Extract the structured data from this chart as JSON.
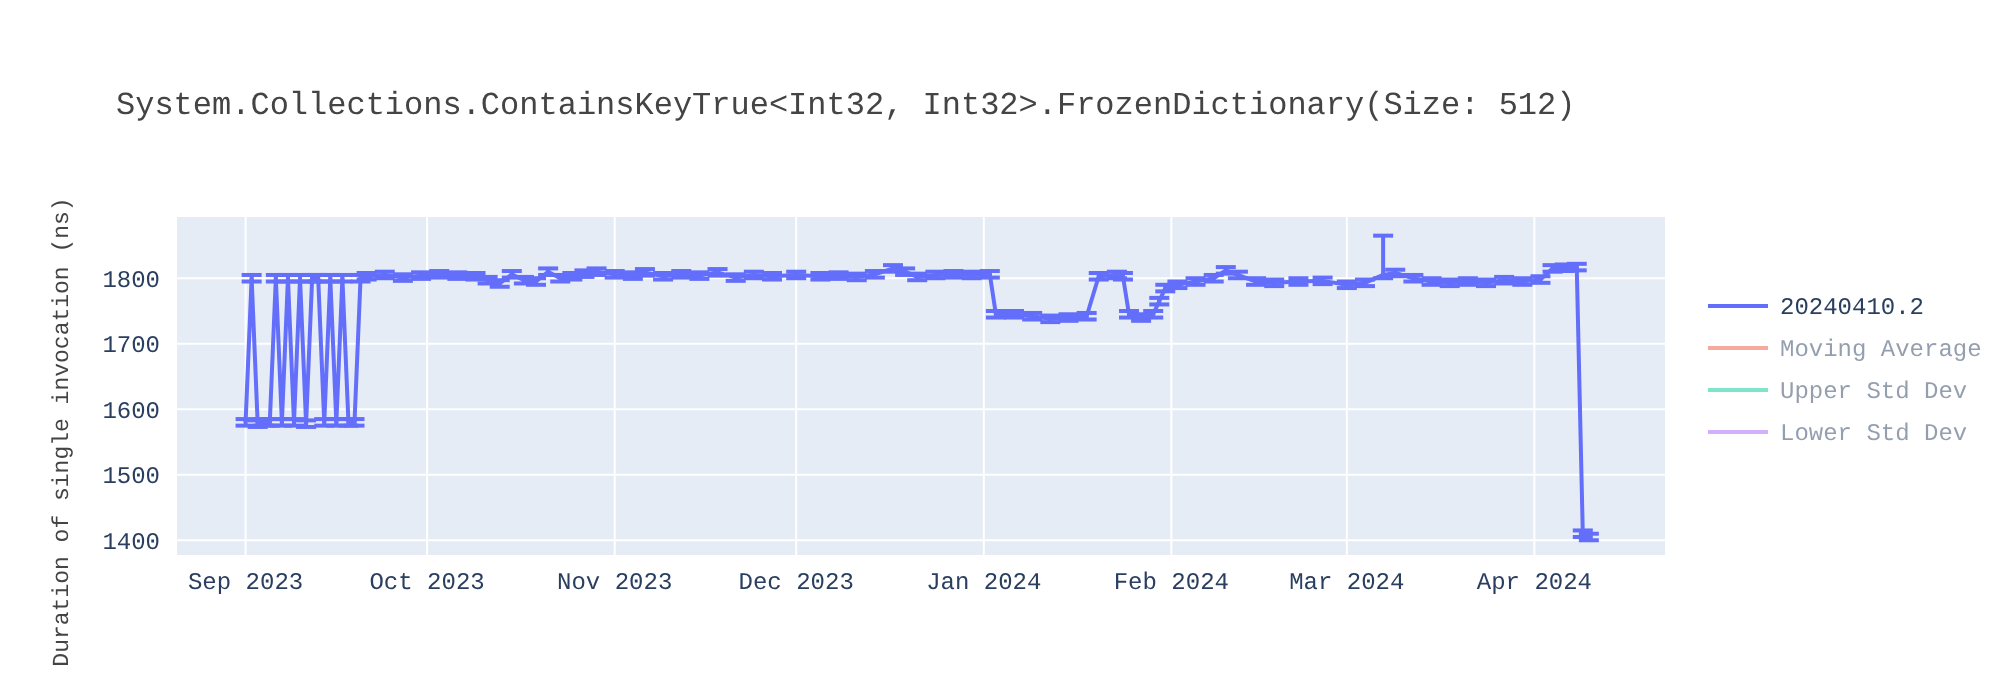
{
  "chart_data": {
    "type": "line",
    "title": "System.Collections.ContainsKeyTrue<Int32, Int32>.FrozenDictionary(Size: 512)",
    "ylabel": "Duration of single invocation (ns)",
    "x": [
      "2023-09-01",
      "2023-09-02",
      "2023-09-03",
      "2023-09-04",
      "2023-09-05",
      "2023-09-06",
      "2023-09-07",
      "2023-09-08",
      "2023-09-09",
      "2023-09-10",
      "2023-09-11",
      "2023-09-12",
      "2023-09-13",
      "2023-09-14",
      "2023-09-15",
      "2023-09-16",
      "2023-09-17",
      "2023-09-18",
      "2023-09-19",
      "2023-09-20",
      "2023-09-21",
      "2023-09-24",
      "2023-09-27",
      "2023-09-30",
      "2023-10-03",
      "2023-10-06",
      "2023-10-09",
      "2023-10-11",
      "2023-10-13",
      "2023-10-15",
      "2023-10-17",
      "2023-10-19",
      "2023-10-21",
      "2023-10-23",
      "2023-10-25",
      "2023-10-27",
      "2023-10-29",
      "2023-11-01",
      "2023-11-04",
      "2023-11-06",
      "2023-11-09",
      "2023-11-12",
      "2023-11-15",
      "2023-11-18",
      "2023-11-21",
      "2023-11-24",
      "2023-11-27",
      "2023-12-01",
      "2023-12-05",
      "2023-12-08",
      "2023-12-11",
      "2023-12-14",
      "2023-12-17",
      "2023-12-19",
      "2023-12-21",
      "2023-12-24",
      "2023-12-27",
      "2023-12-30",
      "2024-01-02",
      "2024-01-03",
      "2024-01-06",
      "2024-01-09",
      "2024-01-12",
      "2024-01-15",
      "2024-01-18",
      "2024-01-20",
      "2024-01-23",
      "2024-01-24",
      "2024-01-25",
      "2024-01-27",
      "2024-01-29",
      "2024-01-30",
      "2024-01-31",
      "2024-02-02",
      "2024-02-05",
      "2024-02-08",
      "2024-02-10",
      "2024-02-12",
      "2024-02-15",
      "2024-02-18",
      "2024-02-22",
      "2024-02-26",
      "2024-03-01",
      "2024-03-04",
      "2024-03-07",
      "2024-03-09",
      "2024-03-12",
      "2024-03-15",
      "2024-03-18",
      "2024-03-21",
      "2024-03-24",
      "2024-03-27",
      "2024-03-30",
      "2024-04-02",
      "2024-04-04",
      "2024-04-06",
      "2024-04-08",
      "2024-04-09",
      "2024-04-10"
    ],
    "series": [
      {
        "name": "20240410.2",
        "color": "#636efa",
        "values": [
          1580,
          1800,
          1578,
          1580,
          1580,
          1800,
          1580,
          1800,
          1580,
          1800,
          1578,
          1800,
          1800,
          1580,
          1800,
          1580,
          1800,
          1580,
          1580,
          1800,
          1803,
          1805,
          1801,
          1804,
          1806,
          1804,
          1803,
          1797,
          1792,
          1806,
          1797,
          1795,
          1810,
          1800,
          1803,
          1807,
          1810,
          1806,
          1804,
          1809,
          1803,
          1806,
          1804,
          1809,
          1801,
          1805,
          1803,
          1805,
          1803,
          1804,
          1802,
          1806,
          1815,
          1810,
          1802,
          1805,
          1806,
          1805,
          1806,
          1745,
          1745,
          1742,
          1738,
          1740,
          1742,
          1803,
          1805,
          1803,
          1745,
          1740,
          1745,
          1765,
          1785,
          1790,
          1795,
          1800,
          1812,
          1805,
          1795,
          1793,
          1795,
          1796,
          1790,
          1793,
          1805,
          1808,
          1800,
          1795,
          1793,
          1795,
          1793,
          1797,
          1795,
          1798,
          1815,
          1816,
          1817,
          1410,
          1405
        ],
        "errors": [
          5,
          5,
          5,
          5,
          5,
          5,
          5,
          5,
          5,
          5,
          5,
          5,
          5,
          5,
          5,
          5,
          5,
          5,
          5,
          5,
          5,
          5,
          5,
          5,
          5,
          5,
          5,
          5,
          5,
          5,
          5,
          5,
          5,
          5,
          5,
          5,
          5,
          5,
          5,
          5,
          5,
          5,
          5,
          5,
          5,
          5,
          5,
          5,
          5,
          5,
          5,
          5,
          5,
          5,
          5,
          5,
          5,
          5,
          5,
          5,
          5,
          5,
          5,
          5,
          5,
          5,
          5,
          5,
          5,
          5,
          5,
          5,
          5,
          5,
          5,
          5,
          5,
          5,
          5,
          5,
          5,
          5,
          5,
          5,
          [
            1800,
            1865
          ],
          5,
          5,
          5,
          5,
          5,
          5,
          5,
          5,
          5,
          5,
          5,
          5,
          5,
          5
        ]
      },
      {
        "name": "Moving Average",
        "color": "#ef553b",
        "values": [
          null,
          null,
          null,
          null,
          null,
          null,
          null,
          null,
          null,
          null,
          null,
          null,
          null,
          null,
          null,
          null,
          null,
          null,
          null,
          null,
          null,
          null,
          null,
          null,
          null,
          null,
          null,
          null,
          null,
          null,
          null,
          null,
          null,
          null,
          null,
          null,
          null,
          null,
          null,
          null,
          null,
          null,
          null,
          null,
          null,
          null,
          null,
          null,
          null,
          null,
          null,
          null,
          null,
          null,
          null,
          null,
          null,
          null,
          null,
          null,
          null,
          null,
          null,
          null,
          null,
          null,
          null,
          null,
          null,
          null,
          null,
          null,
          null,
          null,
          null,
          null,
          null,
          null,
          null,
          null,
          null,
          null,
          null,
          null,
          null,
          null,
          null,
          null,
          null,
          null,
          null,
          null,
          null,
          null,
          null,
          null,
          null,
          null,
          null
        ]
      },
      {
        "name": "Upper Std Dev",
        "color": "#00cc96",
        "values": [
          null,
          null,
          null,
          null,
          null,
          null,
          null,
          null,
          null,
          null,
          null,
          null,
          null,
          null,
          null,
          null,
          null,
          null,
          null,
          null,
          null,
          null,
          null,
          null,
          null,
          null,
          null,
          null,
          null,
          null,
          null,
          null,
          null,
          null,
          null,
          null,
          null,
          null,
          null,
          null,
          null,
          null,
          null,
          null,
          null,
          null,
          null,
          null,
          null,
          null,
          null,
          null,
          null,
          null,
          null,
          null,
          null,
          null,
          null,
          null,
          null,
          null,
          null,
          null,
          null,
          null,
          null,
          null,
          null,
          null,
          null,
          null,
          null,
          null,
          null,
          null,
          null,
          null,
          null,
          null,
          null,
          null,
          null,
          null,
          null,
          null,
          null,
          null,
          null,
          null,
          null,
          null,
          null,
          null,
          null,
          null,
          null,
          null,
          null
        ]
      },
      {
        "name": "Lower Std Dev",
        "color": "#ab63fa",
        "values": [
          null,
          null,
          null,
          null,
          null,
          null,
          null,
          null,
          null,
          null,
          null,
          null,
          null,
          null,
          null,
          null,
          null,
          null,
          null,
          null,
          null,
          null,
          null,
          null,
          null,
          null,
          null,
          null,
          null,
          null,
          null,
          null,
          null,
          null,
          null,
          null,
          null,
          null,
          null,
          null,
          null,
          null,
          null,
          null,
          null,
          null,
          null,
          null,
          null,
          null,
          null,
          null,
          null,
          null,
          null,
          null,
          null,
          null,
          null,
          null,
          null,
          null,
          null,
          null,
          null,
          null,
          null,
          null,
          null,
          null,
          null,
          null,
          null,
          null,
          null,
          null,
          null,
          null,
          null,
          null,
          null,
          null,
          null,
          null,
          null,
          null,
          null,
          null,
          null,
          null,
          null,
          null,
          null,
          null,
          null,
          null,
          null,
          null,
          null
        ]
      }
    ],
    "xlim": [
      "2023-08-20T12:00",
      "2024-04-22T18:00"
    ],
    "xticks": [
      {
        "value": "2023-09-01",
        "label": "Sep 2023"
      },
      {
        "value": "2023-10-01",
        "label": "Oct 2023"
      },
      {
        "value": "2023-11-01",
        "label": "Nov 2023"
      },
      {
        "value": "2023-12-01",
        "label": "Dec 2023"
      },
      {
        "value": "2024-01-01",
        "label": "Jan 2024"
      },
      {
        "value": "2024-02-01",
        "label": "Feb 2024"
      },
      {
        "value": "2024-03-01",
        "label": "Mar 2024"
      },
      {
        "value": "2024-04-01",
        "label": "Apr 2024"
      }
    ],
    "ylim": [
      1376,
      1895
    ],
    "yticks": [
      1400,
      1500,
      1600,
      1700,
      1800
    ],
    "grid": true,
    "legend": "top right",
    "marker": "none",
    "line_style": "solid"
  }
}
